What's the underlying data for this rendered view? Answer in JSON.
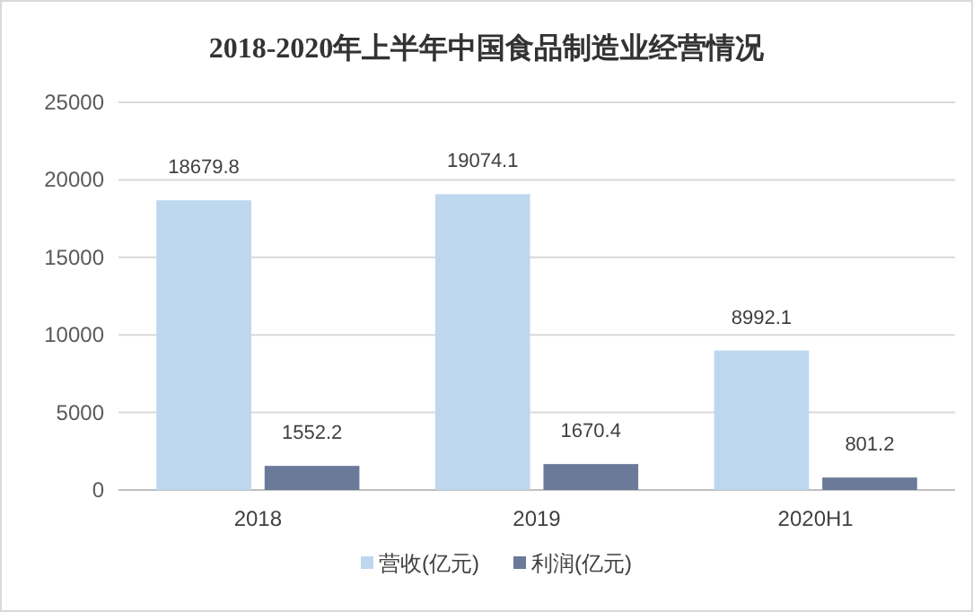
{
  "chart_data": {
    "type": "bar",
    "title": "2018-2020年上半年中国食品制造业经营情况",
    "categories": [
      "2018",
      "2019",
      "2020H1"
    ],
    "series": [
      {
        "name": "营收(亿元)",
        "color": "#bdd7ee",
        "values": [
          18679.8,
          19074.1,
          8992.1
        ]
      },
      {
        "name": "利润(亿元)",
        "color": "#6b7a99",
        "values": [
          1552.2,
          1670.4,
          801.2
        ]
      }
    ],
    "ylim": [
      0,
      25000
    ],
    "yticks": [
      0,
      5000,
      10000,
      15000,
      20000,
      25000
    ],
    "grid": "y",
    "legend": "bottom",
    "data_labels": true
  }
}
